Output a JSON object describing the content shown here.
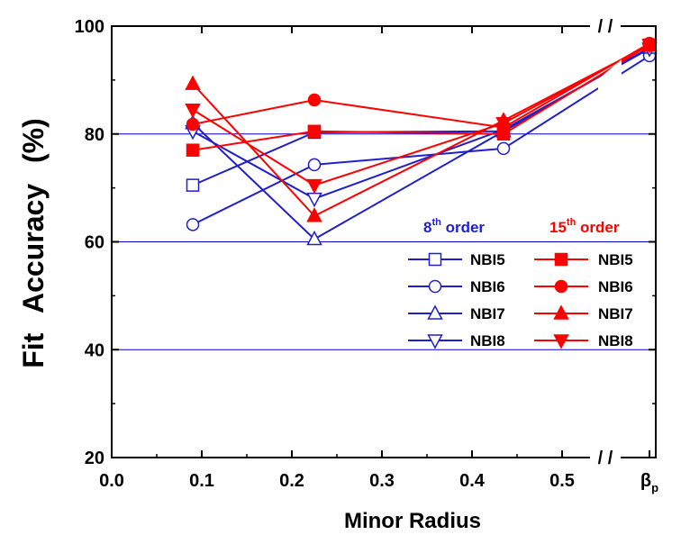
{
  "chart_data": {
    "type": "line",
    "xlabel": "Minor Radius",
    "ylabel": "Fit Accuracy (%)",
    "xlim": [
      0.0,
      0.6
    ],
    "ylim": [
      20,
      100
    ],
    "x_ticks": [
      "0.0",
      "0.1",
      "0.2",
      "0.3",
      "0.4",
      "0.5"
    ],
    "y_ticks": [
      "20",
      "40",
      "60",
      "80",
      "100"
    ],
    "break_marks": "/ /",
    "extra_x_label": {
      "main": "β",
      "sub": "p"
    },
    "gridlines_y": [
      40,
      60,
      80
    ],
    "grid_color": "#0000cc",
    "legend": {
      "placement": "lower-right",
      "group_8": {
        "order": "8",
        "sup": "th",
        "suffix": " order",
        "color": "#1f1fcc"
      },
      "group_15": {
        "order": "15",
        "sup": "th",
        "suffix": " order",
        "color": "#ff0000"
      }
    },
    "x": [
      0.09,
      0.225,
      0.435,
      "βp"
    ],
    "series": [
      {
        "name": "NBI5",
        "group": "8th order",
        "marker": "square",
        "filled": false,
        "color": "#1f1fcc",
        "values": [
          70.5,
          80.3,
          80.5,
          96.0
        ]
      },
      {
        "name": "NBI6",
        "group": "8th order",
        "marker": "circle",
        "filled": false,
        "color": "#1f1fcc",
        "values": [
          63.2,
          74.3,
          77.3,
          94.5
        ]
      },
      {
        "name": "NBI7",
        "group": "8th order",
        "marker": "triangle-up",
        "filled": false,
        "color": "#1f1fcc",
        "values": [
          82.0,
          60.5,
          80.5,
          96.0
        ]
      },
      {
        "name": "NBI8",
        "group": "8th order",
        "marker": "triangle-down",
        "filled": false,
        "color": "#1f1fcc",
        "values": [
          80.5,
          68.0,
          80.8,
          95.8
        ]
      },
      {
        "name": "NBI5",
        "group": "15th order",
        "marker": "square",
        "filled": true,
        "color": "#ff0000",
        "values": [
          77.0,
          80.5,
          80.0,
          96.5
        ]
      },
      {
        "name": "NBI6",
        "group": "15th order",
        "marker": "circle",
        "filled": true,
        "color": "#ff0000",
        "values": [
          81.8,
          86.3,
          81.2,
          96.8
        ]
      },
      {
        "name": "NBI7",
        "group": "15th order",
        "marker": "triangle-up",
        "filled": true,
        "color": "#ff0000",
        "values": [
          89.3,
          64.8,
          82.5,
          96.5
        ]
      },
      {
        "name": "NBI8",
        "group": "15th order",
        "marker": "triangle-down",
        "filled": true,
        "color": "#ff0000",
        "values": [
          84.5,
          70.5,
          82.0,
          96.5
        ]
      }
    ]
  }
}
